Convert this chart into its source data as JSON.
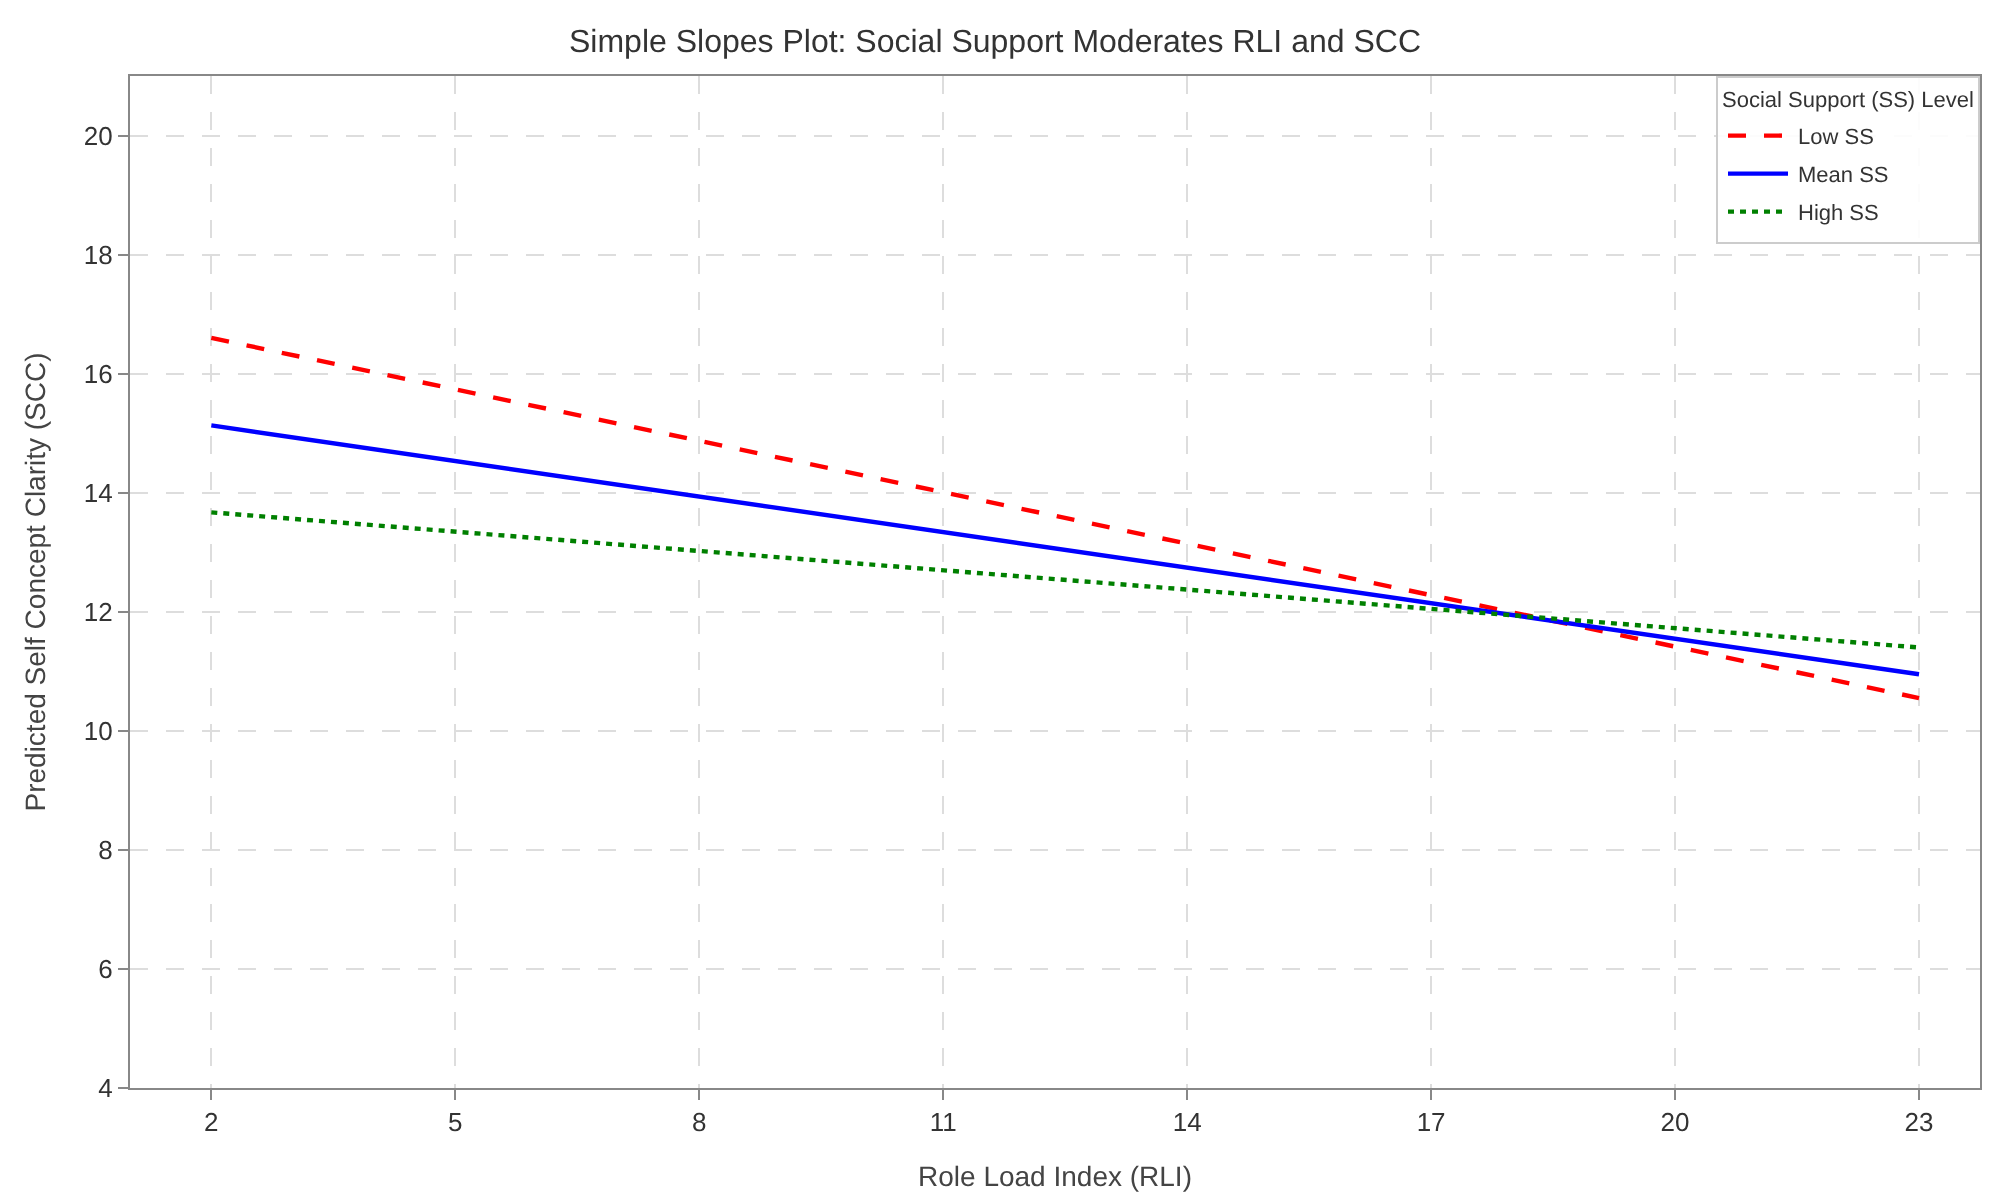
{
  "chart_data": {
    "type": "line",
    "title": "Simple Slopes Plot: Social Support Moderates RLI and SCC",
    "xlabel": "Role Load Index (RLI)",
    "ylabel": "Predicted Self Concept Clarity (SCC)",
    "legend_title": "Social Support (SS) Level",
    "x": [
      2,
      23
    ],
    "series": [
      {
        "name": "Low SS",
        "color": "#ff0000",
        "values": [
          16.6,
          10.55
        ],
        "line_style": "dashed"
      },
      {
        "name": "Mean SS",
        "color": "#0000ff",
        "values": [
          15.13,
          10.95
        ],
        "line_style": "solid"
      },
      {
        "name": "High SS",
        "color": "#008000",
        "values": [
          13.67,
          11.4
        ],
        "line_style": "dotted"
      }
    ],
    "xlim": [
      1,
      23.75
    ],
    "xticks": [
      2,
      5,
      8,
      11,
      14,
      17,
      20,
      23
    ],
    "ylim": [
      4,
      21
    ],
    "yticks": [
      4,
      6,
      8,
      10,
      12,
      14,
      16,
      18,
      20
    ],
    "grid": true,
    "legend": "top right",
    "marker": "none"
  }
}
